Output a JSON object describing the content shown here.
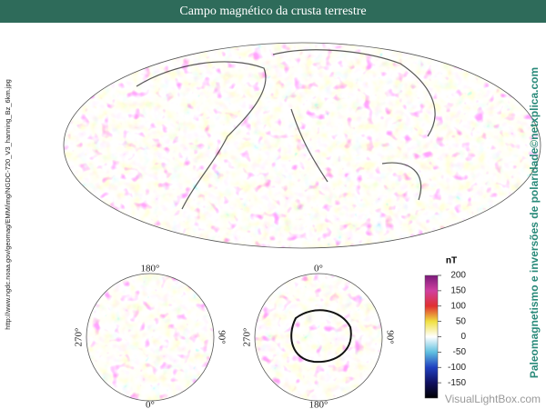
{
  "header": {
    "title": "Campo magnético da crusta terrestre"
  },
  "source": "http://www.ngdc.noaa.gov/geomag/EMM/img/NGDC-720_V3_hanning_Bz_6km.jpg",
  "credit": "Paleomagnetismo e inversões de polaridade©netxplica.com",
  "north_polar": {
    "top": "180°",
    "bottom": "0°",
    "left": "270°",
    "right": "90°"
  },
  "south_polar": {
    "top": "0°",
    "bottom": "180°",
    "left": "270°",
    "right": "90°"
  },
  "colorbar": {
    "unit": "nT",
    "ticks": [
      200,
      150,
      100,
      50,
      0,
      -50,
      -100,
      -150
    ],
    "range": [
      -200,
      200
    ]
  },
  "watermark": "VisualLightBox.com"
}
